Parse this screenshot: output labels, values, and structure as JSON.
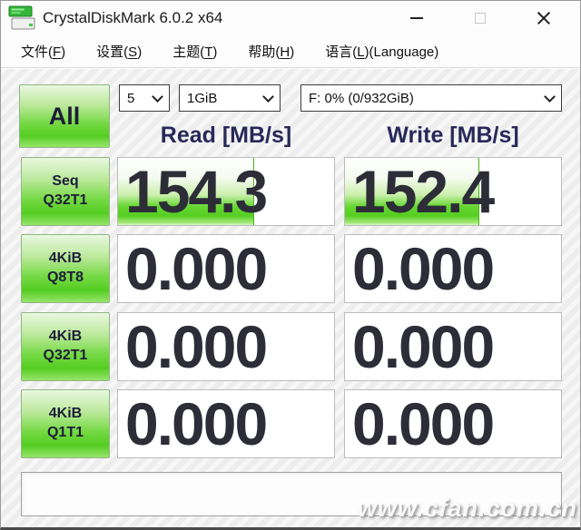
{
  "window": {
    "title": "CrystalDiskMark 6.0.2 x64"
  },
  "menu_bar": {
    "items": [
      {
        "pre": "文件(",
        "key": "F",
        "post": ")"
      },
      {
        "pre": "设置(",
        "key": "S",
        "post": ")"
      },
      {
        "pre": "主题(",
        "key": "T",
        "post": ")"
      },
      {
        "pre": "帮助(",
        "key": "H",
        "post": ")"
      },
      {
        "pre": "语言(",
        "key": "L",
        "post": ")(Language)"
      }
    ]
  },
  "toolbar": {
    "all_button_label": "All",
    "test_count_value": "5",
    "test_size_value": "1GiB",
    "drive_value": "F: 0% (0/932GiB)"
  },
  "table": {
    "read_header": "Read [MB/s]",
    "write_header": "Write [MB/s]",
    "rows": [
      {
        "label_top": "Seq",
        "label_bottom": "Q32T1",
        "read": "154.3",
        "write": "152.4",
        "read_bar_pct": 63,
        "write_bar_pct": 62
      },
      {
        "label_top": "4KiB",
        "label_bottom": "Q8T8",
        "read": "0.000",
        "write": "0.000",
        "read_bar_pct": 0,
        "write_bar_pct": 0
      },
      {
        "label_top": "4KiB",
        "label_bottom": "Q32T1",
        "read": "0.000",
        "write": "0.000",
        "read_bar_pct": 0,
        "write_bar_pct": 0
      },
      {
        "label_top": "4KiB",
        "label_bottom": "Q1T1",
        "read": "0.000",
        "write": "0.000",
        "read_bar_pct": 0,
        "write_bar_pct": 0
      }
    ]
  },
  "comment_field": {
    "value": ""
  },
  "watermark_text": "www.cfan.com.cn",
  "colors": {
    "accent_green": "#55ce22",
    "header_navy": "#28285a",
    "value_text": "#2d2d38"
  }
}
